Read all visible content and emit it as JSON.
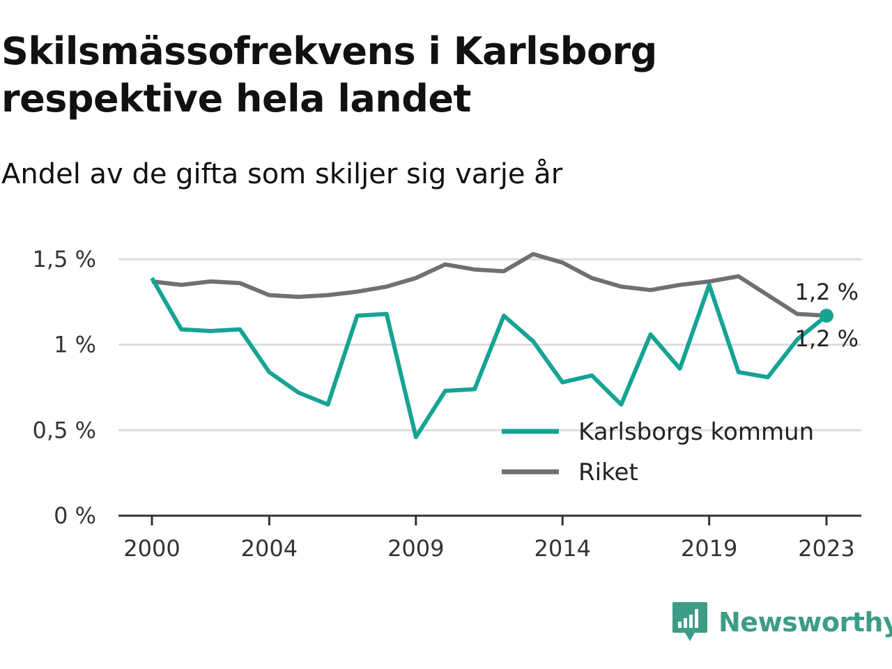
{
  "header": {
    "title": "Skilsmässofrekvens i Karlsborg respektive hela landet",
    "subtitle": "Andel av de gifta som skiljer sig varje år"
  },
  "brand": {
    "name": "Newsworthy",
    "icon": "newsworthy-bar-chart-icon",
    "color": "#3d9c88"
  },
  "chart_data": {
    "type": "line",
    "title": "Skilsmässofrekvens i Karlsborg respektive hela landet",
    "subtitle": "Andel av de gifta som skiljer sig varje år",
    "xlabel": "",
    "ylabel": "",
    "x": [
      2000,
      2001,
      2002,
      2003,
      2004,
      2005,
      2006,
      2007,
      2008,
      2009,
      2010,
      2011,
      2012,
      2013,
      2014,
      2015,
      2016,
      2017,
      2018,
      2019,
      2020,
      2021,
      2022,
      2023
    ],
    "x_tick_labels": [
      "2000",
      "2004",
      "2009",
      "2014",
      "2019",
      "2023"
    ],
    "y_ticks": [
      0,
      0.5,
      1,
      1.5
    ],
    "y_tick_labels": [
      "0 %",
      "0,5 %",
      "1 %",
      "1,5 %"
    ],
    "ylim": [
      0,
      1.6
    ],
    "grid": true,
    "legend_position": "bottom-right",
    "series": [
      {
        "name": "Karlsborgs kommun",
        "color": "#16a394",
        "values": [
          1.39,
          1.09,
          1.08,
          1.09,
          0.84,
          0.72,
          0.65,
          1.17,
          1.18,
          0.46,
          0.73,
          0.74,
          1.17,
          1.02,
          0.78,
          0.82,
          0.65,
          1.06,
          0.86,
          1.35,
          0.84,
          0.81,
          1.03,
          1.17
        ],
        "end_label": "1,2 %"
      },
      {
        "name": "Riket",
        "color": "#706f74",
        "values": [
          1.37,
          1.35,
          1.37,
          1.36,
          1.29,
          1.28,
          1.29,
          1.31,
          1.34,
          1.39,
          1.47,
          1.44,
          1.43,
          1.53,
          1.48,
          1.39,
          1.34,
          1.32,
          1.35,
          1.37,
          1.4,
          1.29,
          1.18,
          1.17
        ],
        "end_label": "1,2 %"
      }
    ]
  }
}
